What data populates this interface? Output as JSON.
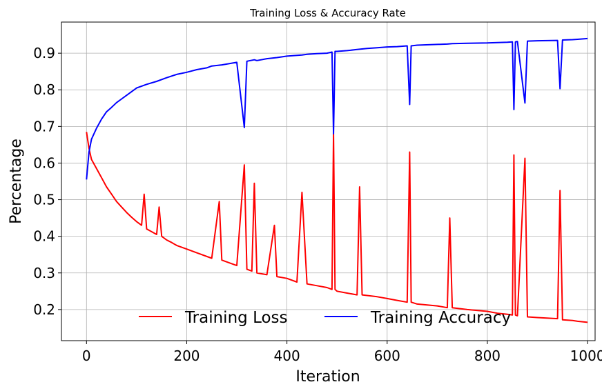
{
  "chart_data": {
    "type": "line",
    "title": "Training Loss & Accuracy Rate",
    "xlabel": "Iteration",
    "ylabel": "Percentage",
    "xlim": [
      -50,
      1015
    ],
    "ylim": [
      0.115,
      0.985
    ],
    "xticks": [
      0,
      200,
      400,
      600,
      800,
      1000
    ],
    "yticks": [
      0.2,
      0.3,
      0.4,
      0.5,
      0.6,
      0.7,
      0.8,
      0.9
    ],
    "xtick_labels": [
      "0",
      "200",
      "400",
      "600",
      "800",
      "1000"
    ],
    "ytick_labels": [
      "0.2",
      "0.3",
      "0.4",
      "0.5",
      "0.6",
      "0.7",
      "0.8",
      "0.9"
    ],
    "grid": true,
    "legend_position": "bottom-center",
    "series": [
      {
        "name": "Training Loss",
        "color": "#ff0000",
        "x": [
          0,
          5,
          10,
          20,
          30,
          40,
          50,
          60,
          70,
          80,
          90,
          100,
          110,
          115,
          120,
          140,
          145,
          150,
          160,
          170,
          180,
          200,
          220,
          250,
          265,
          270,
          300,
          315,
          320,
          330,
          335,
          340,
          360,
          375,
          380,
          400,
          420,
          430,
          440,
          460,
          480,
          490,
          493,
          496,
          500,
          520,
          540,
          545,
          550,
          580,
          600,
          620,
          640,
          645,
          648,
          660,
          700,
          720,
          725,
          730,
          760,
          800,
          820,
          840,
          850,
          853,
          856,
          860,
          875,
          880,
          900,
          940,
          945,
          950,
          970,
          980,
          1000
        ],
        "values": [
          0.685,
          0.64,
          0.61,
          0.585,
          0.56,
          0.535,
          0.515,
          0.495,
          0.48,
          0.465,
          0.452,
          0.44,
          0.43,
          0.515,
          0.42,
          0.405,
          0.48,
          0.4,
          0.39,
          0.383,
          0.375,
          0.365,
          0.355,
          0.34,
          0.495,
          0.335,
          0.32,
          0.595,
          0.31,
          0.305,
          0.545,
          0.3,
          0.295,
          0.43,
          0.29,
          0.285,
          0.275,
          0.52,
          0.27,
          0.265,
          0.26,
          0.255,
          0.68,
          0.255,
          0.25,
          0.245,
          0.24,
          0.535,
          0.24,
          0.235,
          0.23,
          0.225,
          0.22,
          0.63,
          0.22,
          0.215,
          0.21,
          0.205,
          0.45,
          0.205,
          0.2,
          0.195,
          0.19,
          0.187,
          0.185,
          0.622,
          0.185,
          0.183,
          0.613,
          0.18,
          0.178,
          0.175,
          0.525,
          0.172,
          0.17,
          0.168,
          0.165
        ]
      },
      {
        "name": "Training Accuracy",
        "color": "#0000ff",
        "x": [
          0,
          5,
          10,
          20,
          30,
          40,
          50,
          60,
          70,
          80,
          90,
          100,
          120,
          140,
          160,
          180,
          200,
          220,
          240,
          250,
          270,
          300,
          315,
          320,
          335,
          340,
          360,
          380,
          400,
          430,
          440,
          460,
          480,
          490,
          493,
          496,
          500,
          520,
          540,
          560,
          580,
          600,
          620,
          640,
          645,
          648,
          660,
          700,
          720,
          730,
          760,
          800,
          820,
          840,
          850,
          853,
          856,
          860,
          875,
          880,
          900,
          940,
          945,
          950,
          970,
          980,
          1000
        ],
        "values": [
          0.555,
          0.63,
          0.665,
          0.695,
          0.72,
          0.74,
          0.752,
          0.765,
          0.775,
          0.785,
          0.795,
          0.805,
          0.815,
          0.823,
          0.833,
          0.842,
          0.848,
          0.855,
          0.86,
          0.865,
          0.868,
          0.875,
          0.697,
          0.878,
          0.882,
          0.88,
          0.885,
          0.888,
          0.892,
          0.895,
          0.897,
          0.899,
          0.9,
          0.903,
          0.68,
          0.905,
          0.905,
          0.907,
          0.91,
          0.913,
          0.915,
          0.917,
          0.918,
          0.92,
          0.76,
          0.92,
          0.922,
          0.924,
          0.925,
          0.926,
          0.927,
          0.928,
          0.929,
          0.93,
          0.931,
          0.746,
          0.931,
          0.932,
          0.764,
          0.933,
          0.934,
          0.935,
          0.803,
          0.936,
          0.937,
          0.938,
          0.94
        ]
      }
    ]
  }
}
